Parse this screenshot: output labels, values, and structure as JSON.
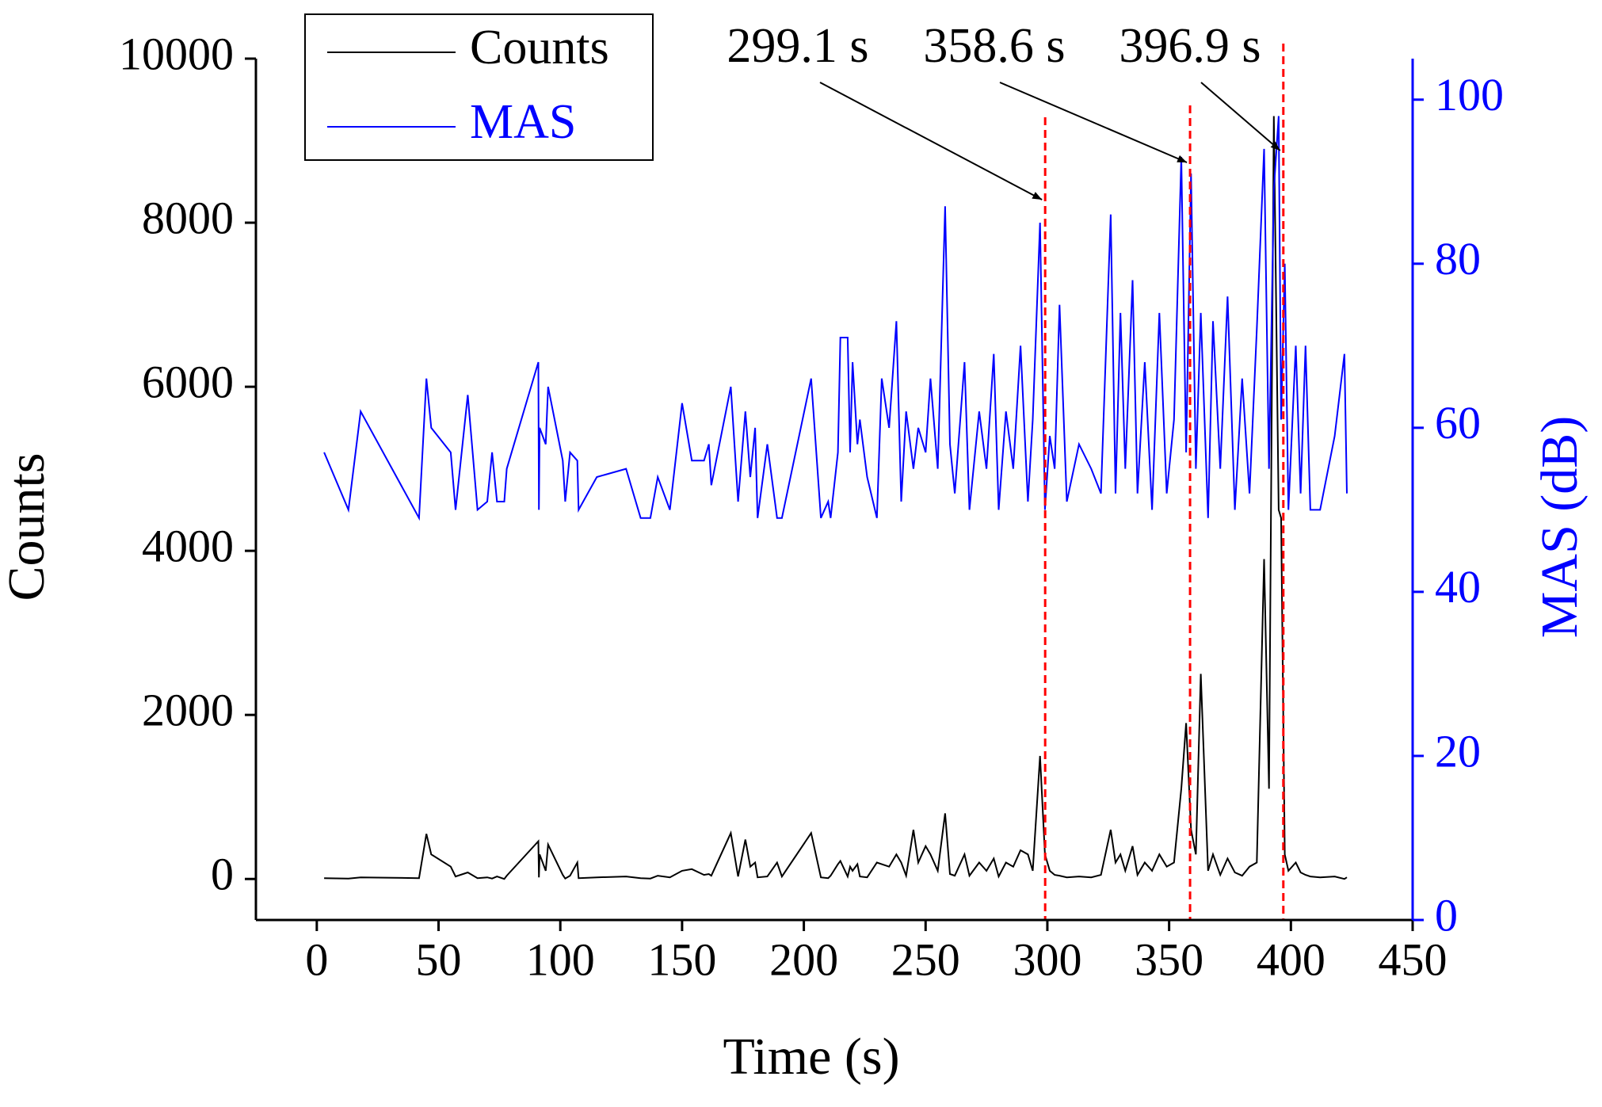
{
  "chart_data": {
    "type": "line",
    "xlabel": "Time (s)",
    "ylabel": "Counts",
    "y2label": "MAS (dB)",
    "x": [
      3,
      13,
      18,
      42,
      45,
      47,
      55,
      57,
      62,
      66,
      70,
      72,
      74,
      77,
      78,
      91,
      91.2,
      91.5,
      94,
      95,
      101,
      102,
      104,
      107,
      107.5,
      115,
      127,
      133,
      137,
      140,
      145,
      150,
      154,
      159,
      161,
      162,
      170,
      173,
      176,
      178,
      180,
      181,
      185,
      189,
      191,
      203,
      207,
      210,
      211,
      214,
      215,
      218,
      219,
      220,
      222,
      223,
      226,
      230,
      232,
      235,
      238,
      240,
      242,
      245,
      247,
      250,
      252,
      255,
      258,
      260,
      262,
      266,
      268,
      272,
      275,
      278,
      280,
      283,
      286,
      289,
      292,
      294,
      297,
      299,
      301,
      303,
      305,
      308,
      313,
      318,
      322,
      326,
      328,
      330,
      332,
      335,
      337,
      340,
      343,
      346,
      349,
      352,
      355,
      357,
      359,
      361,
      363,
      366,
      368,
      371,
      374,
      377,
      380,
      383,
      386,
      389,
      391,
      393,
      395,
      396,
      397.5,
      399,
      402,
      404,
      406,
      408,
      412,
      418,
      422,
      423
    ],
    "series": [
      {
        "name": "Counts",
        "color": "#000000",
        "axis": "y",
        "values": [
          10,
          5,
          20,
          10,
          550,
          300,
          150,
          30,
          80,
          10,
          20,
          5,
          30,
          0,
          40,
          460,
          20,
          300,
          100,
          420,
          50,
          5,
          40,
          200,
          10,
          20,
          30,
          10,
          5,
          40,
          20,
          100,
          120,
          50,
          60,
          40,
          560,
          30,
          480,
          150,
          200,
          20,
          30,
          200,
          30,
          560,
          20,
          10,
          40,
          180,
          220,
          30,
          150,
          100,
          180,
          30,
          20,
          200,
          180,
          150,
          300,
          200,
          40,
          600,
          200,
          400,
          300,
          100,
          800,
          60,
          40,
          300,
          40,
          200,
          100,
          250,
          30,
          200,
          150,
          350,
          300,
          100,
          1500,
          300,
          100,
          50,
          40,
          20,
          30,
          20,
          50,
          600,
          200,
          300,
          100,
          400,
          50,
          200,
          100,
          300,
          150,
          200,
          1100,
          1900,
          600,
          300,
          2500,
          100,
          300,
          50,
          250,
          80,
          40,
          150,
          200,
          3900,
          1100,
          9300,
          4500,
          4400,
          300,
          100,
          200,
          80,
          50,
          30,
          20,
          30,
          0,
          20
        ]
      },
      {
        "name": "MAS",
        "color": "#0000ff",
        "axis": "y2",
        "values": [
          57,
          50,
          62,
          49,
          66,
          60,
          57,
          50,
          64,
          50,
          51,
          57,
          51,
          51,
          55,
          68,
          50,
          60,
          58,
          65,
          56,
          51,
          57,
          56,
          50,
          54,
          55,
          49,
          49,
          54,
          50,
          63,
          56,
          56,
          58,
          53,
          65,
          51,
          62,
          54,
          60,
          49,
          58,
          49,
          49,
          66,
          49,
          51,
          49,
          57,
          71,
          71,
          57,
          68,
          58,
          61,
          54,
          49,
          66,
          60,
          73,
          51,
          62,
          55,
          60,
          57,
          66,
          55,
          87,
          58,
          52,
          68,
          50,
          62,
          55,
          69,
          50,
          62,
          55,
          70,
          51,
          61,
          85,
          50,
          59,
          55,
          75,
          51,
          58,
          55,
          52,
          86,
          52,
          74,
          55,
          78,
          52,
          68,
          50,
          74,
          52,
          61,
          93,
          57,
          91,
          55,
          74,
          49,
          73,
          55,
          76,
          50,
          66,
          52,
          72,
          94,
          55,
          89,
          98,
          61,
          80,
          50,
          70,
          52,
          70,
          50,
          50,
          59,
          69,
          52
        ]
      }
    ],
    "markers": [
      {
        "x": 299.1,
        "label": "299.1 s"
      },
      {
        "x": 358.6,
        "label": "358.6 s"
      },
      {
        "x": 396.9,
        "label": "396.9 s"
      }
    ],
    "marker_color": "#ff0000",
    "xlim": [
      -25,
      450
    ],
    "xticks": [
      0,
      50,
      100,
      150,
      200,
      250,
      300,
      350,
      400,
      450
    ],
    "ylim": [
      -500,
      10000
    ],
    "yticks": [
      0,
      2000,
      4000,
      6000,
      8000,
      10000
    ],
    "y2lim": [
      0,
      105
    ],
    "y2ticks": [
      0,
      20,
      40,
      60,
      80,
      100
    ],
    "y2color": "#0000ff"
  }
}
